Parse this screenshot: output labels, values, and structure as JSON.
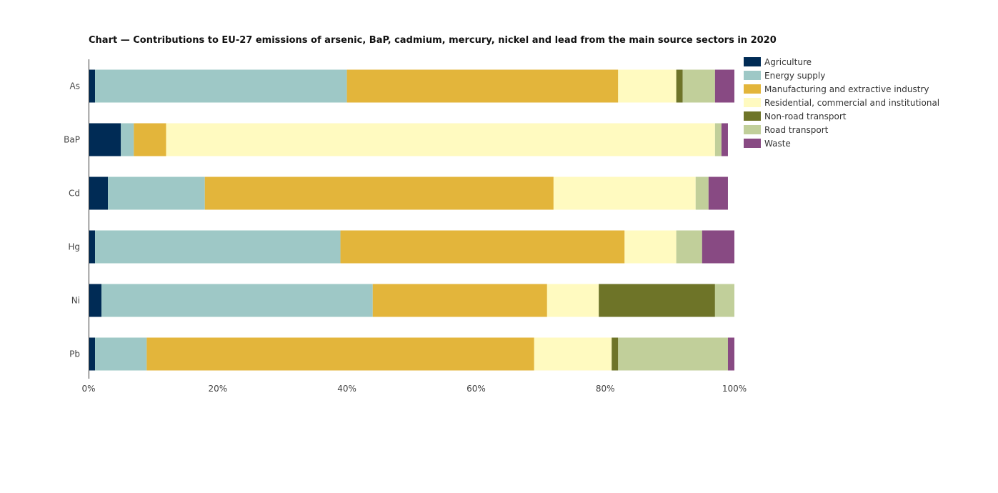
{
  "chart_data": {
    "type": "bar",
    "orientation": "horizontal",
    "stacked": true,
    "title": "Chart — Contributions to EU-27 emissions of arsenic, BaP, cadmium, mercury, nickel and lead from the main source sectors in 2020",
    "xlabel": "",
    "ylabel": "",
    "xlim": [
      0,
      100
    ],
    "x_ticks": [
      "0%",
      "20%",
      "40%",
      "60%",
      "80%",
      "100%"
    ],
    "x_tick_values": [
      0,
      20,
      40,
      60,
      80,
      100
    ],
    "grid": false,
    "legend_position": "top-right",
    "categories": [
      "As",
      "BaP",
      "Cd",
      "Hg",
      "Ni",
      "Pb"
    ],
    "series": [
      {
        "name": "Agriculture",
        "color": "#002b55",
        "values": [
          1,
          5,
          3,
          1,
          2,
          1
        ]
      },
      {
        "name": "Energy supply",
        "color": "#9ec8c6",
        "values": [
          39,
          2,
          15,
          38,
          42,
          8
        ]
      },
      {
        "name": "Manufacturing and extractive industry",
        "color": "#e3b53b",
        "values": [
          42,
          5,
          54,
          44,
          27,
          60
        ]
      },
      {
        "name": "Residential, commercial and institutional",
        "color": "#fffac0",
        "values": [
          9,
          85,
          22,
          8,
          8,
          12
        ]
      },
      {
        "name": "Non-road transport",
        "color": "#6e7428",
        "values": [
          1,
          0,
          0,
          0,
          18,
          1
        ]
      },
      {
        "name": "Road transport",
        "color": "#c1cf9a",
        "values": [
          5,
          1,
          2,
          4,
          3,
          17
        ]
      },
      {
        "name": "Waste",
        "color": "#884a83",
        "values": [
          3,
          1,
          3,
          5,
          0,
          1
        ]
      }
    ]
  }
}
